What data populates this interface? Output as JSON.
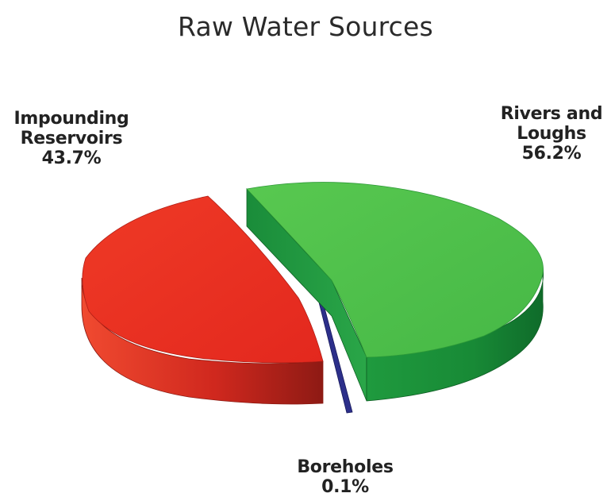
{
  "chart_data": {
    "type": "pie",
    "title": "Raw Water Sources",
    "slices": [
      {
        "label_lines": [
          "Rivers and",
          "Loughs"
        ],
        "value": 56.2,
        "value_label": "56.2%",
        "color": "#4cc24c"
      },
      {
        "label_lines": [
          "Boreholes"
        ],
        "value": 0.1,
        "value_label": "0.1%",
        "color": "#2c2f8a"
      },
      {
        "label_lines": [
          "Impounding",
          "Reservoirs"
        ],
        "value": 43.7,
        "value_label": "43.7%",
        "color": "#ee2f24"
      }
    ],
    "exploded": true,
    "three_d": true
  }
}
